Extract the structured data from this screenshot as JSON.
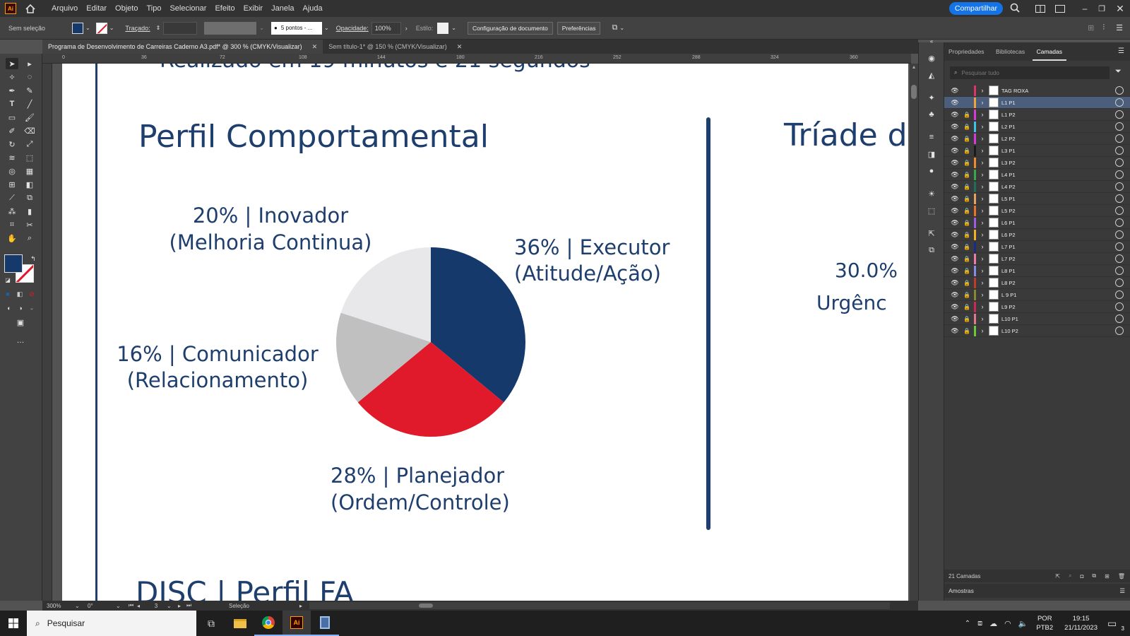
{
  "app": {
    "logo": "Ai",
    "share_label": "Compartilhar"
  },
  "menu": [
    "Arquivo",
    "Editar",
    "Objeto",
    "Tipo",
    "Selecionar",
    "Efeito",
    "Exibir",
    "Janela",
    "Ajuda"
  ],
  "control": {
    "selection": "Sem seleção",
    "stroke_label": "Traçado:",
    "brush": "5 pontos - ...",
    "opacity_label": "Opacidade:",
    "opacity_value": "100%",
    "style_label": "Estilo:",
    "doc_setup": "Configuração de documento",
    "prefs": "Preferências"
  },
  "tabs": [
    {
      "label": "Programa de Desenvolvimento de Carreiras Caderno A3.pdf* @ 300 % (CMYK/Visualizar)",
      "active": true
    },
    {
      "label": "Sem título-1* @ 150 % (CMYK/Visualizar)",
      "active": false
    }
  ],
  "ruler": [
    "0",
    "36",
    "72",
    "108",
    "144",
    "180",
    "216",
    "252",
    "288",
    "324",
    "360"
  ],
  "document": {
    "top_text": "Realizado em 19 minutos e 21 segundos",
    "title": "Perfil Comportamental",
    "right_title": "Tríade d",
    "right_value": "30.0%",
    "right_label": "Urgênc",
    "bottom_text": "DISC | Perfil FA",
    "labels": {
      "inovador_1": "20% | Inovador",
      "inovador_2": "(Melhoria Continua)",
      "executor_1": "36% | Executor",
      "executor_2": "(Atitude/Ação)",
      "comunicador_1": "16% | Comunicador",
      "comunicador_2": "(Relacionamento)",
      "planejador_1": "28% | Planejador",
      "planejador_2": "(Ordem/Controle)"
    }
  },
  "chart_data": {
    "type": "pie",
    "start_angle": 0,
    "slices": [
      {
        "label": "Executor",
        "value": 36,
        "color": "#14396a"
      },
      {
        "label": "Planejador",
        "value": 28,
        "color": "#e01a2b"
      },
      {
        "label": "Comunicador",
        "value": 16,
        "color": "#c0c0c0"
      },
      {
        "label": "Inovador",
        "value": 20,
        "color": "#e8e8ea"
      }
    ]
  },
  "panel": {
    "tabs": [
      "Propriedades",
      "Bibliotecas",
      "Camadas"
    ],
    "search_placeholder": "Pesquisar tudo",
    "footer": "21 Camadas",
    "swatches_label": "Amostras"
  },
  "layers": [
    {
      "name": "TAG ROXA",
      "color": "#e0336a",
      "locked": false
    },
    {
      "name": "L1 P1",
      "color": "#f2a33a",
      "locked": false,
      "selected": true
    },
    {
      "name": "L1 P2",
      "color": "#d83ad6",
      "locked": true
    },
    {
      "name": "L2 P1",
      "color": "#39c6e8",
      "locked": true
    },
    {
      "name": "L2 P2",
      "color": "#d83ad6",
      "locked": true
    },
    {
      "name": "L3 P1",
      "color": "#1a1a1a",
      "locked": true
    },
    {
      "name": "L3 P2",
      "color": "#f08a2a",
      "locked": true
    },
    {
      "name": "L4 P1",
      "color": "#3aa84a",
      "locked": true
    },
    {
      "name": "L4 P2",
      "color": "#1e6e5a",
      "locked": true
    },
    {
      "name": "L5 P1",
      "color": "#e8a05a",
      "locked": true
    },
    {
      "name": "L5 P2",
      "color": "#e8742a",
      "locked": true
    },
    {
      "name": "L6 P1",
      "color": "#a05ae8",
      "locked": true
    },
    {
      "name": "L6 P2",
      "color": "#f0b02a",
      "locked": true
    },
    {
      "name": "L7 P1",
      "color": "#1a2a8a",
      "locked": true
    },
    {
      "name": "L7 P2",
      "color": "#ee7aa8",
      "locked": true
    },
    {
      "name": "L8 P1",
      "color": "#8a8ae8",
      "locked": true
    },
    {
      "name": "L8 P2",
      "color": "#c23a2a",
      "locked": true
    },
    {
      "name": "L 9 P1",
      "color": "#8a8a2a",
      "locked": true
    },
    {
      "name": "L9 P2",
      "color": "#c8285a",
      "locked": true
    },
    {
      "name": "L10 P1",
      "color": "#e07a8a",
      "locked": true
    },
    {
      "name": "L10 P2",
      "color": "#6ac83a",
      "locked": true
    }
  ],
  "status": {
    "zoom": "300%",
    "rotation": "0°",
    "artboard": "3",
    "tool": "Seleção"
  },
  "taskbar": {
    "search": "Pesquisar",
    "lang1": "POR",
    "lang2": "PTB2",
    "time": "19:15",
    "date": "21/11/2023",
    "notifications": "3"
  }
}
